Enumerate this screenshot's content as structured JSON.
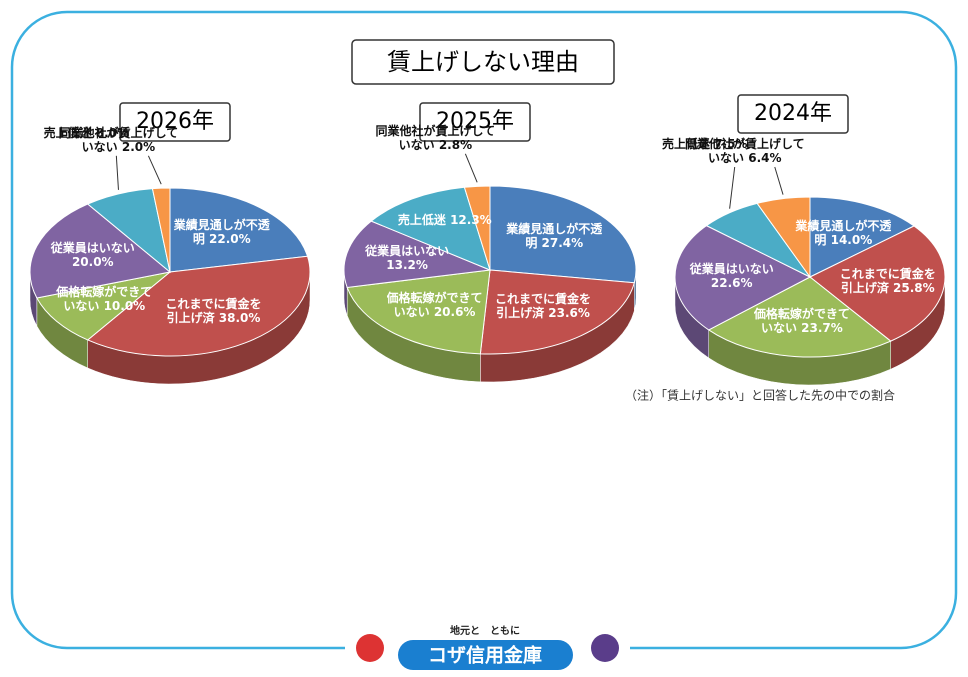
{
  "title": "賃上げしない理由",
  "note": "（注）「賃上げしない」と回答した先の中での割合",
  "footer": {
    "tagline": "地元と　ともに",
    "brand": "コザ信用金庫"
  },
  "chart_data": [
    {
      "type": "pie",
      "title": "2026年",
      "categories": [
        "業績見通しが不透明",
        "これまでに賃金を引上げ済",
        "価格転嫁ができていない",
        "従業員はいない",
        "売上低迷",
        "同業他社が賃上げしていない"
      ],
      "values": [
        22.0,
        38.0,
        10.0,
        20.0,
        8.0,
        2.0
      ],
      "value_labels": [
        "22.0%",
        "38.0%",
        "10.0%",
        "20.0%",
        "8.0%",
        "2.0%"
      ],
      "colors": [
        "#4a7ebb",
        "#c0504d",
        "#9bbb59",
        "#8064a2",
        "#4bacc6",
        "#f79646"
      ]
    },
    {
      "type": "pie",
      "title": "2025年",
      "categories": [
        "業績見通しが不透明",
        "これまでに賃金を引上げ済",
        "価格転嫁ができていない",
        "従業員はいない",
        "売上低迷",
        "同業他社が賃上げしていない"
      ],
      "values": [
        27.4,
        23.6,
        20.6,
        13.2,
        12.3,
        2.8
      ],
      "value_labels": [
        "27.4%",
        "23.6%",
        "20.6%",
        "13.2%",
        "12.3%",
        "2.8%"
      ],
      "colors": [
        "#4a7ebb",
        "#c0504d",
        "#9bbb59",
        "#8064a2",
        "#4bacc6",
        "#f79646"
      ]
    },
    {
      "type": "pie",
      "title": "2024年",
      "categories": [
        "業績見通しが不透明",
        "これまでに賃金を引上げ済",
        "価格転嫁ができていない",
        "従業員はいない",
        "売上低迷",
        "同業他社が賃上げしていない"
      ],
      "values": [
        14.0,
        25.8,
        23.7,
        22.6,
        7.5,
        6.4
      ],
      "value_labels": [
        "14.0%",
        "25.8%",
        "23.7%",
        "22.6%",
        "7.5%",
        "6.4%"
      ],
      "colors": [
        "#4a7ebb",
        "#c0504d",
        "#9bbb59",
        "#8064a2",
        "#4bacc6",
        "#f79646"
      ]
    }
  ]
}
